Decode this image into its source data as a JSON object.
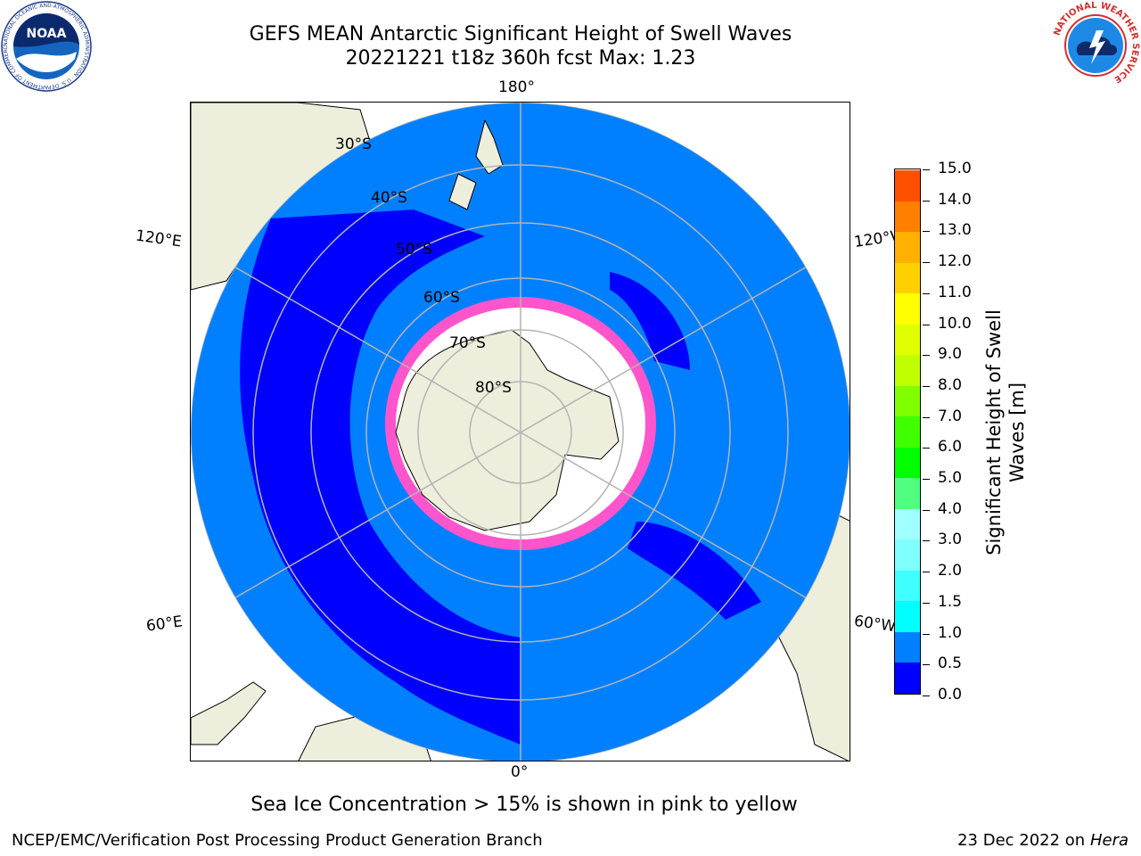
{
  "title_line1": "GEFS MEAN Antarctic Significant Height of Swell Waves",
  "title_line2": "20221221 t18z 360h fcst   Max: 1.23",
  "subtitle": "Sea Ice Concentration > 15% is shown in pink to yellow",
  "footer_left": "NCEP/EMC/Verification Post Processing Product Generation Branch",
  "footer_date": "23 Dec 2022 on",
  "footer_machine": "Hera",
  "map": {
    "projection": "south-polar-stereographic",
    "lon_labels": [
      "180°",
      "120°E",
      "120°W",
      "60°E",
      "60°W",
      "0°"
    ],
    "lat_labels": [
      "30°S",
      "40°S",
      "50°S",
      "60°S",
      "70°S",
      "80°S"
    ],
    "colors": {
      "land": "#eeeedc",
      "ocean_low": "#0000ff",
      "ocean_mid": "#0080ff",
      "sea_ice_edge": "#ff55cc",
      "grid": "#b4b4b4"
    }
  },
  "colorbar": {
    "label_line1": "Significant Height of Swell",
    "label_line2": "Waves [m]",
    "ticks": [
      "0.0",
      "0.5",
      "1.0",
      "1.5",
      "2.0",
      "3.0",
      "4.0",
      "5.0",
      "6.0",
      "7.0",
      "8.0",
      "9.0",
      "10.0",
      "11.0",
      "12.0",
      "13.0",
      "14.0",
      "15.0"
    ],
    "colors": [
      "#0000ff",
      "#0080ff",
      "#00ffff",
      "#40ffff",
      "#80ffff",
      "#a0ffff",
      "#50ff80",
      "#00ff00",
      "#40ff00",
      "#80ff00",
      "#c0ff00",
      "#e0ff00",
      "#ffff00",
      "#ffd000",
      "#ffb000",
      "#ff8000",
      "#ff5000",
      "#ff2000",
      "#ff0000"
    ]
  },
  "logos": {
    "noaa_text": "NOAA",
    "noaa_ring": "NATIONAL OCEANIC AND ATMOSPHERIC ADMINISTRATION · U.S. DEPARTMENT OF COMMERCE",
    "nws_ring": "NATIONAL WEATHER SERVICE"
  }
}
